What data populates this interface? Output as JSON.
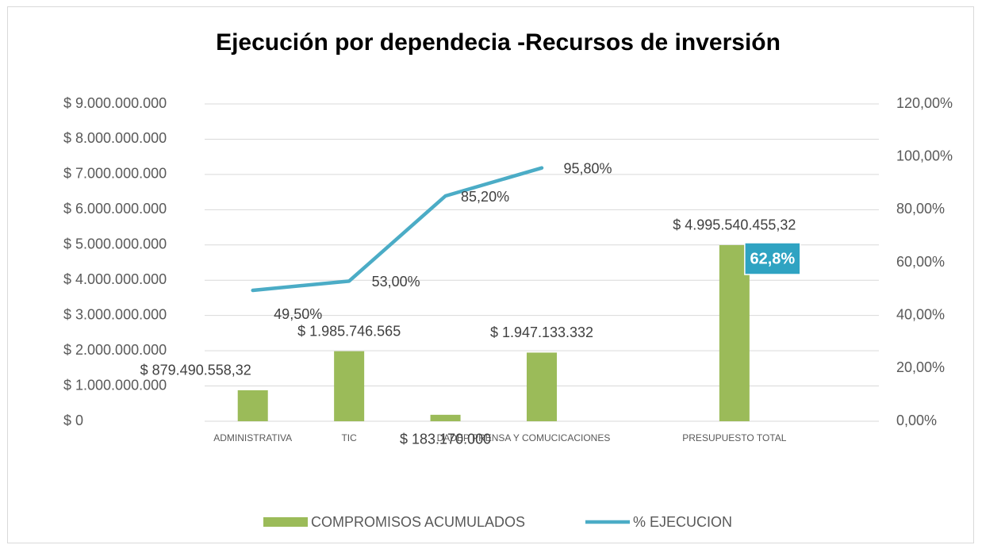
{
  "chart_data": {
    "type": "bar_line",
    "title": "Ejecución por dependecia -Recursos de inversión",
    "categories": [
      "ADMINISTRATIVA",
      "TIC",
      null,
      "DADEP PRENSA Y COMUCICACIONES",
      null,
      "PRESUPUESTO TOTAL",
      null
    ],
    "series": [
      {
        "name": "COMPROMISOS ACUMULADOS",
        "type": "bar",
        "color": "#9bbb59",
        "values": [
          879490558.32,
          1985746565,
          183170000,
          1947133332,
          null,
          4995540455.32,
          null
        ],
        "value_labels": [
          "$ 879.490.558,32",
          "$ 1.985.746.565",
          "$ 183.170.000",
          "$ 1.947.133.332",
          null,
          "$ 4.995.540.455,32",
          null
        ]
      },
      {
        "name": "% EJECUCION",
        "type": "line",
        "axis": "y2",
        "color": "#4bacc6",
        "values": [
          49.5,
          53.0,
          85.2,
          95.8,
          null,
          null,
          null
        ],
        "value_labels": [
          "49,50%",
          "53,00%",
          "85,20%",
          "95,80%",
          null,
          null,
          null
        ]
      }
    ],
    "ylim": [
      0,
      9000000000
    ],
    "yticks": [
      {
        "value": 0,
        "label": "$ 0"
      },
      {
        "value": 1000000000,
        "label": "$ 1.000.000.000"
      },
      {
        "value": 2000000000,
        "label": "$ 2.000.000.000"
      },
      {
        "value": 3000000000,
        "label": "$ 3.000.000.000"
      },
      {
        "value": 4000000000,
        "label": "$ 4.000.000.000"
      },
      {
        "value": 5000000000,
        "label": "$ 5.000.000.000"
      },
      {
        "value": 6000000000,
        "label": "$ 6.000.000.000"
      },
      {
        "value": 7000000000,
        "label": "$ 7.000.000.000"
      },
      {
        "value": 8000000000,
        "label": "$ 8.000.000.000"
      },
      {
        "value": 9000000000,
        "label": "$ 9.000.000.000"
      }
    ],
    "y2lim": [
      0,
      120
    ],
    "y2ticks": [
      {
        "value": 0,
        "label": "0,00%"
      },
      {
        "value": 20,
        "label": "20,00%"
      },
      {
        "value": 40,
        "label": "40,00%"
      },
      {
        "value": 60,
        "label": "60,00%"
      },
      {
        "value": 80,
        "label": "80,00%"
      },
      {
        "value": 100,
        "label": "100,00%"
      },
      {
        "value": 120,
        "label": "120,00%"
      }
    ],
    "grid": true,
    "legend": "bottom",
    "annotations": [
      {
        "text": "62,8%",
        "category": 5
      }
    ]
  }
}
